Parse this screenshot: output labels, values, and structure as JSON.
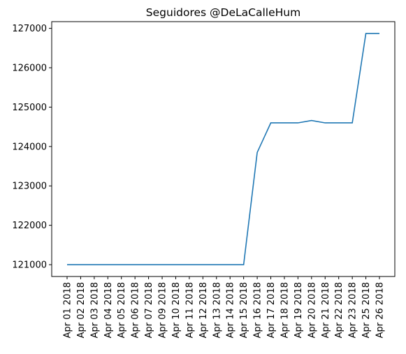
{
  "chart_data": {
    "type": "line",
    "title": "Seguidores @DeLaCalleHum",
    "xlabel": "",
    "ylabel": "",
    "categories": [
      "Apr 01 2018",
      "Apr 02 2018",
      "Apr 03 2018",
      "Apr 04 2018",
      "Apr 05 2018",
      "Apr 06 2018",
      "Apr 07 2018",
      "Apr 09 2018",
      "Apr 10 2018",
      "Apr 11 2018",
      "Apr 12 2018",
      "Apr 13 2018",
      "Apr 14 2018",
      "Apr 15 2018",
      "Apr 16 2018",
      "Apr 17 2018",
      "Apr 18 2018",
      "Apr 19 2018",
      "Apr 20 2018",
      "Apr 21 2018",
      "Apr 22 2018",
      "Apr 23 2018",
      "Apr 25 2018",
      "Apr 26 2018"
    ],
    "series": [
      {
        "color": "#1f77b4",
        "values": [
          121000,
          121000,
          121000,
          121000,
          121000,
          121000,
          121000,
          121000,
          121000,
          121000,
          121000,
          121000,
          121000,
          121000,
          123850,
          124600,
          124600,
          124600,
          124660,
          124600,
          124600,
          124600,
          126870,
          126870
        ]
      }
    ],
    "ylim": [
      120700,
      127170
    ],
    "yticks": [
      121000,
      122000,
      123000,
      124000,
      125000,
      126000,
      127000
    ],
    "grid": false,
    "legend": "none"
  }
}
